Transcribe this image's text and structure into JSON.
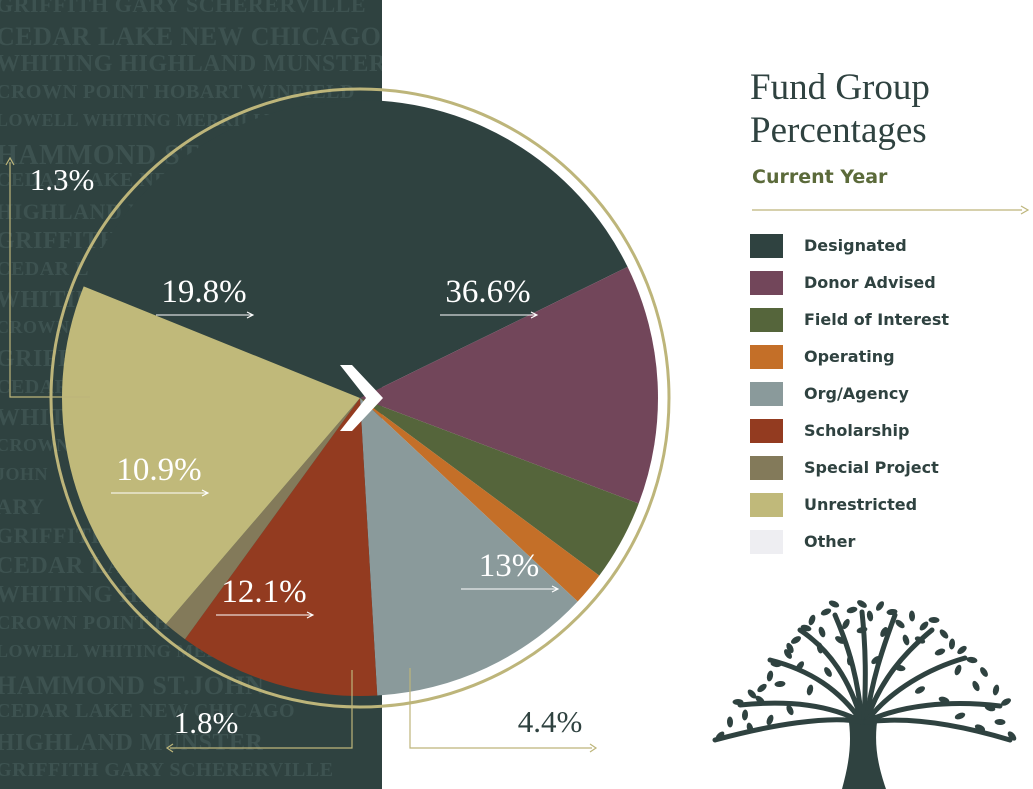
{
  "header": {
    "title": "Fund Group Percentages",
    "subtitle": "Current Year"
  },
  "background_words": [
    "GRIFFITH  GARY  SCHERERVILLE",
    "CEDAR LAKE  NEW CHICAGO",
    "WHITING  HIGHLAND  MUNSTER",
    "CROWN POINT  HOBART  WINFIELD",
    "LOWELL  WHITING  MERRILLVILLE",
    "HAMMOND  ST.JOHN",
    "CEDAR LAKE  NEW CHICAGO",
    "HIGHLAND  MUNSTER",
    "GRIFFITH  GARY",
    "CEDAR LAKE",
    "WHITING  HIGHLAND",
    "CROWN POINT",
    "GRIFFITH",
    "CEDAR LAKE",
    "WHITING",
    "CROWN",
    "JOHN",
    "ARY",
    "GRIFFITH  GARY",
    "CEDAR LAKE  NEW CHICAGO",
    "WHITING  HIGHLAND  MUNSTER",
    "CROWN POINT  HOBART",
    "LOWELL  WHITING  MERRILLVILLE",
    "HAMMOND  ST.JOHN",
    "CEDAR LAKE  NEW CHICAGO",
    "HIGHLAND  MUNSTER",
    "GRIFFITH  GARY  SCHERERVILLE"
  ],
  "chart_data": {
    "type": "pie",
    "title": "Fund Group Percentages",
    "subtitle": "Current Year",
    "unit": "%",
    "legend_position": "right",
    "slices": [
      {
        "name": "Designated",
        "value": 36.6,
        "label": "36.6%",
        "color": "#2f4240"
      },
      {
        "name": "Donor Advised",
        "value": 13.0,
        "label": "13%",
        "color": "#72465a"
      },
      {
        "name": "Field of Interest",
        "value": 4.4,
        "label": "4.4%",
        "color": "#55653b"
      },
      {
        "name": "Operating",
        "value": 1.8,
        "label": "1.8%",
        "color": "#c46f28"
      },
      {
        "name": "Org/Agency",
        "value": 12.1,
        "label": "12.1%",
        "color": "#8a9a9b"
      },
      {
        "name": "Scholarship",
        "value": 10.9,
        "label": "10.9%",
        "color": "#933b20"
      },
      {
        "name": "Special Project",
        "value": 1.3,
        "label": "1.3%",
        "color": "#837a5a"
      },
      {
        "name": "Unrestricted",
        "value": 19.8,
        "label": "19.8%",
        "color": "#c0b97a"
      }
    ],
    "legend": [
      {
        "name": "Designated",
        "color": "#2f4240"
      },
      {
        "name": "Donor Advised",
        "color": "#72465a"
      },
      {
        "name": "Field of Interest",
        "color": "#55653b"
      },
      {
        "name": "Operating",
        "color": "#c46f28"
      },
      {
        "name": "Org/Agency",
        "color": "#8a9a9b"
      },
      {
        "name": "Scholarship",
        "color": "#933b20"
      },
      {
        "name": "Special Project",
        "color": "#837a5a"
      },
      {
        "name": "Unrestricted",
        "color": "#c0b97a"
      },
      {
        "name": "Other",
        "color": "#eeeef2"
      }
    ]
  },
  "colors": {
    "background_panel": "#2f4240",
    "accent_line": "#bdb57a",
    "title_text": "#2f4240",
    "subtitle_text": "#5b6a3a"
  },
  "icons": {
    "center_mark": "chevron-right-icon",
    "tree": "tree-icon"
  }
}
